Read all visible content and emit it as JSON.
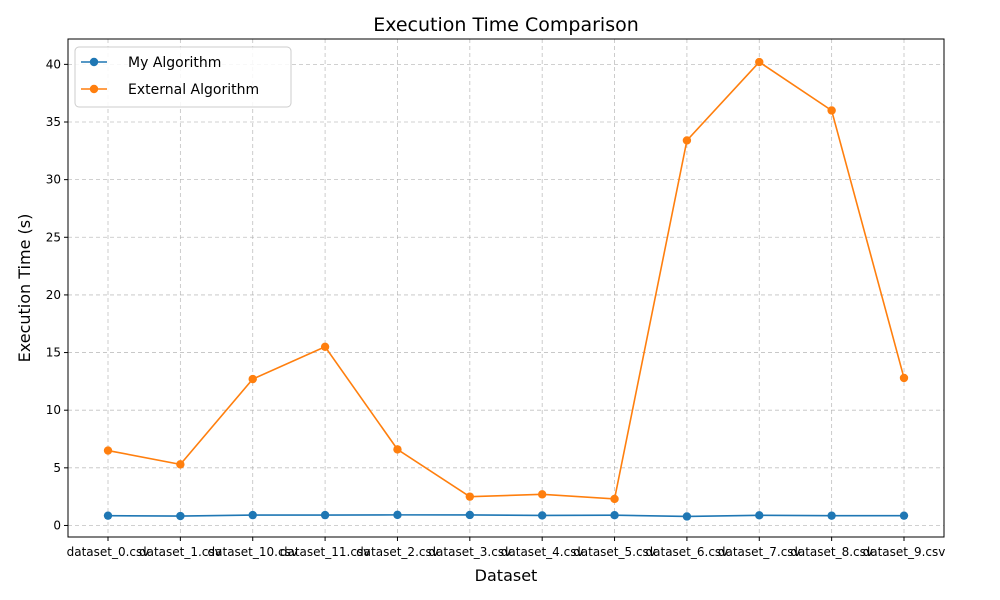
{
  "chart_data": {
    "type": "line",
    "title": "Execution Time Comparison",
    "xlabel": "Dataset",
    "ylabel": "Execution Time (s)",
    "categories": [
      "dataset_0.csv",
      "dataset_1.csv",
      "dataset_10.csv",
      "dataset_11.csv",
      "dataset_2.csv",
      "dataset_3.csv",
      "dataset_4.csv",
      "dataset_5.csv",
      "dataset_6.csv",
      "dataset_7.csv",
      "dataset_8.csv",
      "dataset_9.csv"
    ],
    "ylim": [
      -1,
      42.2
    ],
    "yticks": [
      0,
      5,
      10,
      15,
      20,
      25,
      30,
      35,
      40
    ],
    "grid": true,
    "legend_position": "top-left",
    "series": [
      {
        "name": "My Algorithm",
        "color": "#1f77b4",
        "values": [
          0.85,
          0.82,
          0.9,
          0.9,
          0.92,
          0.91,
          0.87,
          0.89,
          0.78,
          0.88,
          0.85,
          0.85
        ]
      },
      {
        "name": "External Algorithm",
        "color": "#ff7f0e",
        "values": [
          6.5,
          5.3,
          12.7,
          15.5,
          6.6,
          2.5,
          2.7,
          2.3,
          33.4,
          40.2,
          36.0,
          12.8
        ]
      }
    ]
  }
}
